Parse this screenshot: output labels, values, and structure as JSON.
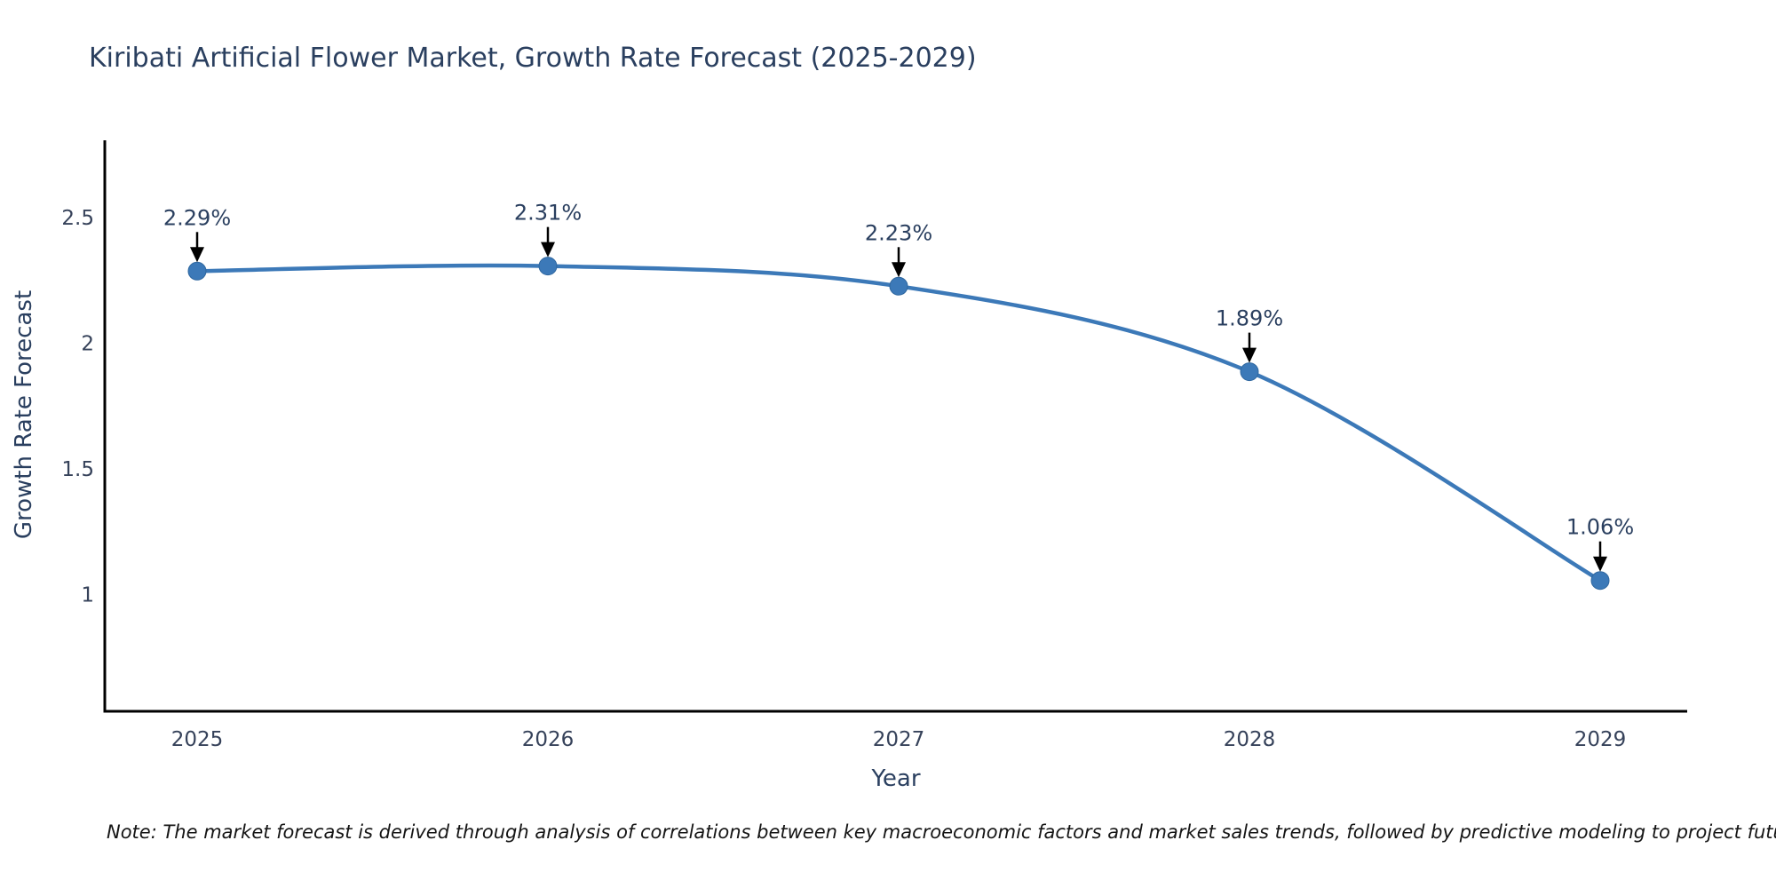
{
  "title": "Kiribati Artificial Flower Market, Growth Rate Forecast (2025-2029)",
  "note": "Note: The market forecast is derived through analysis of correlations between key macroeconomic factors and market sales trends, followed by predictive modeling to project future sales",
  "chart_data": {
    "type": "line",
    "title": "Kiribati Artificial Flower Market, Growth Rate Forecast (2025-2029)",
    "x": [
      2025,
      2026,
      2027,
      2028,
      2029
    ],
    "series": [
      {
        "name": "Growth Rate Forecast",
        "values": [
          2.29,
          2.31,
          2.23,
          1.89,
          1.06
        ]
      }
    ],
    "point_labels": [
      "2.29%",
      "2.31%",
      "2.23%",
      "1.89%",
      "1.06%"
    ],
    "xlabel": "Year",
    "ylabel": "Growth Rate Forecast",
    "yticks": [
      1,
      1.5,
      2,
      2.5
    ],
    "ytick_labels": [
      "1",
      "1.5",
      "2",
      "2.5"
    ],
    "ylim": [
      0.54,
      2.81
    ],
    "line_shape": "spline",
    "grid": false,
    "legend": false,
    "colors": {
      "line": "#3c79b8",
      "marker": "#3c79b8",
      "marker_edge": "#2f679f",
      "arrow": "#000000",
      "axis": "#000000",
      "title_text": "#2a3f5f",
      "tick_text": "#36425a",
      "annotation_text": "#2a3f5f"
    }
  }
}
